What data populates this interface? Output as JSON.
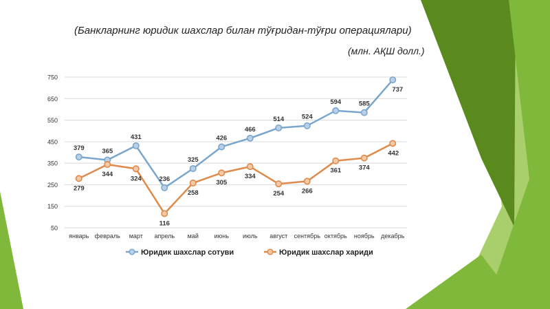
{
  "title": "(Банкларнинг юридик шахслар билан тўғридан-тўғри операциялари)",
  "unit_note": "(млн. АҚШ долл.)",
  "colors": {
    "series_sales": "#7aa6cc",
    "series_sales_marker_fill": "#b9d0e8",
    "series_purchases": "#e08a4a",
    "series_purchases_marker_fill": "#f3c9a6",
    "gridline": "#d9d9d9",
    "deco_green_dark": "#5a8a1e",
    "deco_green": "#7fb83a",
    "deco_green_light": "#a9cf6d"
  },
  "chart_data": {
    "type": "line",
    "categories": [
      "январь",
      "февраль",
      "март",
      "апрель",
      "май",
      "июнь",
      "июль",
      "август",
      "сентябрь",
      "октябрь",
      "ноябрь",
      "декабрь"
    ],
    "series": [
      {
        "name": "Юридик шахслар сотуви",
        "values": [
          379,
          365,
          431,
          236,
          325,
          426,
          466,
          514,
          524,
          594,
          585,
          737
        ]
      },
      {
        "name": "Юридик шахслар хариди",
        "values": [
          279,
          344,
          324,
          116,
          258,
          305,
          334,
          254,
          266,
          361,
          374,
          442
        ]
      }
    ],
    "ylim": [
      50,
      750
    ],
    "yticks": [
      50,
      150,
      250,
      350,
      450,
      550,
      650,
      750
    ],
    "grid": true,
    "legend_position": "bottom",
    "data_labels": true
  }
}
